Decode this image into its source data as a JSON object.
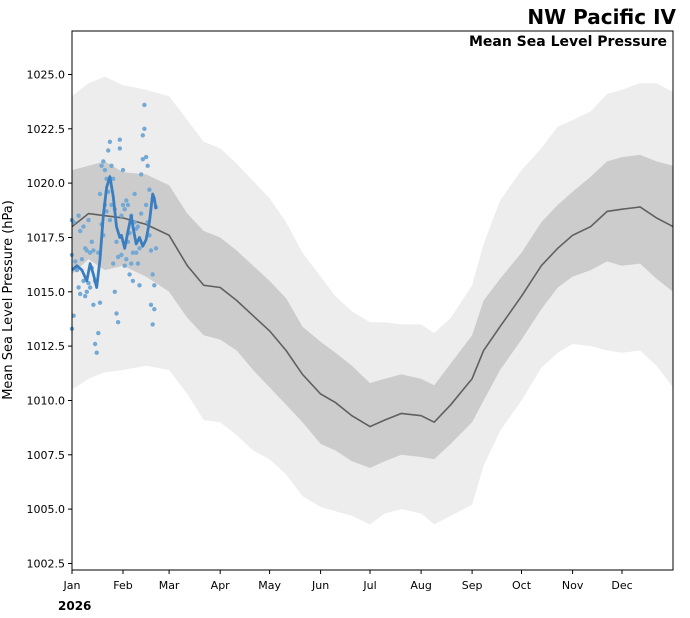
{
  "chart_data": {
    "type": "line",
    "title": "NW Pacific IV",
    "subtitle": "Mean Sea Level Pressure",
    "ylabel": "Mean Sea Level Pressure (hPa)",
    "year_label": "2026",
    "ylim": [
      1002.2,
      1027.0
    ],
    "xlim_day": [
      0,
      365
    ],
    "y_ticks": [
      1002.5,
      1005.0,
      1007.5,
      1010.0,
      1012.5,
      1015.0,
      1017.5,
      1020.0,
      1022.5,
      1025.0
    ],
    "y_tick_labels": [
      "1002.5",
      "1005.0",
      "1007.5",
      "1010.0",
      "1012.5",
      "1015.0",
      "1017.5",
      "1020.0",
      "1022.5",
      "1025.0"
    ],
    "months": [
      {
        "label": "Jan",
        "day": 0
      },
      {
        "label": "Feb",
        "day": 31
      },
      {
        "label": "Mar",
        "day": 59
      },
      {
        "label": "Apr",
        "day": 90
      },
      {
        "label": "May",
        "day": 120
      },
      {
        "label": "Jun",
        "day": 151
      },
      {
        "label": "Jul",
        "day": 181
      },
      {
        "label": "Aug",
        "day": 212
      },
      {
        "label": "Sep",
        "day": 243
      },
      {
        "label": "Oct",
        "day": 273
      },
      {
        "label": "Nov",
        "day": 304
      },
      {
        "label": "Dec",
        "day": 334
      }
    ],
    "climatology": {
      "day": [
        0,
        10,
        20,
        31,
        45,
        59,
        70,
        80,
        90,
        100,
        110,
        120,
        130,
        140,
        151,
        160,
        170,
        181,
        190,
        200,
        212,
        220,
        230,
        243,
        250,
        260,
        273,
        285,
        295,
        304,
        315,
        325,
        334,
        345,
        355,
        365
      ],
      "mean": [
        1018.0,
        1018.6,
        1018.5,
        1018.4,
        1018.1,
        1017.6,
        1016.2,
        1015.3,
        1015.2,
        1014.6,
        1013.9,
        1013.2,
        1012.3,
        1011.2,
        1010.3,
        1009.9,
        1009.3,
        1008.8,
        1009.1,
        1009.4,
        1009.3,
        1009.0,
        1009.8,
        1011.0,
        1012.3,
        1013.4,
        1014.8,
        1016.2,
        1017.0,
        1017.6,
        1018.0,
        1018.7,
        1018.8,
        1018.9,
        1018.4,
        1018.0
      ],
      "p25": [
        1015.8,
        1016.5,
        1016.0,
        1016.2,
        1015.7,
        1015.0,
        1013.8,
        1013.0,
        1012.8,
        1012.3,
        1011.4,
        1010.6,
        1009.8,
        1009.0,
        1008.0,
        1007.7,
        1007.2,
        1006.9,
        1007.2,
        1007.5,
        1007.4,
        1007.3,
        1008.0,
        1009.0,
        1010.0,
        1011.4,
        1012.8,
        1014.2,
        1015.2,
        1015.7,
        1016.0,
        1016.4,
        1016.2,
        1016.3,
        1015.6,
        1015.0
      ],
      "p75": [
        1020.6,
        1020.8,
        1021.0,
        1020.5,
        1020.4,
        1019.9,
        1018.6,
        1017.8,
        1017.5,
        1016.9,
        1016.2,
        1015.5,
        1014.7,
        1013.4,
        1012.7,
        1012.2,
        1011.6,
        1010.8,
        1011.0,
        1011.2,
        1011.0,
        1010.7,
        1011.7,
        1013.0,
        1014.6,
        1015.6,
        1016.8,
        1018.2,
        1019.0,
        1019.6,
        1020.3,
        1021.0,
        1021.2,
        1021.3,
        1021.0,
        1020.8
      ],
      "min": [
        1010.5,
        1011.0,
        1011.3,
        1011.4,
        1011.6,
        1011.4,
        1010.3,
        1009.1,
        1009.0,
        1008.4,
        1007.7,
        1007.3,
        1006.6,
        1005.6,
        1005.1,
        1004.9,
        1004.7,
        1004.3,
        1004.8,
        1005.0,
        1004.8,
        1004.3,
        1004.7,
        1005.2,
        1007.0,
        1008.6,
        1010.0,
        1011.5,
        1012.2,
        1012.6,
        1012.5,
        1012.3,
        1012.2,
        1012.3,
        1011.6,
        1010.6
      ],
      "max": [
        1024.0,
        1024.6,
        1024.9,
        1024.5,
        1024.3,
        1024.0,
        1022.9,
        1021.9,
        1021.6,
        1020.9,
        1020.1,
        1019.3,
        1018.2,
        1016.8,
        1015.7,
        1014.8,
        1014.1,
        1013.6,
        1013.6,
        1013.5,
        1013.5,
        1013.1,
        1013.8,
        1015.3,
        1017.2,
        1019.2,
        1020.6,
        1021.6,
        1022.6,
        1022.9,
        1023.3,
        1024.1,
        1024.3,
        1024.6,
        1024.6,
        1024.2
      ]
    },
    "observed_line": {
      "day": [
        0,
        3,
        6,
        9,
        11,
        13,
        15,
        17,
        19,
        21,
        23,
        25,
        27,
        29,
        30,
        32,
        34,
        36,
        37,
        39,
        41,
        43,
        45,
        47,
        49,
        50,
        51
      ],
      "value": [
        1016.0,
        1016.2,
        1016.0,
        1015.5,
        1016.3,
        1015.8,
        1015.2,
        1016.5,
        1018.5,
        1019.8,
        1020.3,
        1019.4,
        1018.0,
        1017.5,
        1017.6,
        1017.0,
        1017.8,
        1018.5,
        1018.0,
        1017.2,
        1017.5,
        1017.1,
        1017.4,
        1018.2,
        1019.5,
        1019.3,
        1018.8
      ]
    },
    "observed_points": {
      "day": [
        0,
        0,
        0,
        1,
        1,
        2,
        3,
        4,
        4,
        5,
        5,
        6,
        7,
        7,
        8,
        8,
        9,
        9,
        10,
        10,
        11,
        11,
        12,
        12,
        13,
        13,
        14,
        14,
        15,
        16,
        16,
        17,
        17,
        18,
        18,
        19,
        19,
        20,
        20,
        21,
        21,
        22,
        22,
        23,
        23,
        24,
        24,
        25,
        25,
        26,
        26,
        27,
        27,
        28,
        28,
        29,
        29,
        30,
        30,
        31,
        31,
        32,
        32,
        33,
        33,
        34,
        34,
        35,
        35,
        36,
        36,
        37,
        37,
        38,
        38,
        39,
        39,
        40,
        40,
        41,
        41,
        42,
        42,
        43,
        43,
        44,
        44,
        45,
        45,
        46,
        46,
        47,
        47,
        48,
        48,
        49,
        49,
        50,
        50,
        51,
        51
      ],
      "value": [
        1013.3,
        1018.3,
        1016.7,
        1013.9,
        1018.2,
        1016.4,
        1016.0,
        1018.5,
        1015.2,
        1017.8,
        1014.9,
        1016.5,
        1015.5,
        1018.0,
        1014.8,
        1017.0,
        1016.9,
        1015.0,
        1015.4,
        1018.3,
        1016.8,
        1015.2,
        1016.1,
        1017.3,
        1014.4,
        1016.9,
        1012.6,
        1015.5,
        1012.2,
        1013.1,
        1016.8,
        1014.5,
        1019.5,
        1018.1,
        1020.8,
        1017.6,
        1021.0,
        1019.0,
        1020.6,
        1018.7,
        1020.2,
        1019.6,
        1021.5,
        1018.3,
        1021.9,
        1020.8,
        1019.0,
        1016.3,
        1020.2,
        1015.0,
        1018.8,
        1014.0,
        1017.3,
        1013.6,
        1016.6,
        1021.6,
        1022.0,
        1016.7,
        1018.5,
        1019.0,
        1020.6,
        1016.2,
        1018.8,
        1019.2,
        1016.5,
        1017.3,
        1019.0,
        1015.8,
        1017.7,
        1016.3,
        1018.5,
        1015.5,
        1016.8,
        1018.2,
        1019.5,
        1016.8,
        1017.9,
        1016.3,
        1018.0,
        1017.0,
        1015.3,
        1020.4,
        1018.6,
        1022.2,
        1021.1,
        1023.6,
        1022.5,
        1021.2,
        1019.0,
        1020.8,
        1018.2,
        1017.6,
        1019.7,
        1014.4,
        1016.9,
        1013.5,
        1015.8,
        1014.2,
        1015.3,
        1017.0,
        1018.9
      ]
    },
    "colors": {
      "minmax_band": "#ededed",
      "iqr_band": "#cccccc",
      "mean_line": "#606060",
      "observed_line": "#3a7ebf",
      "observed_points": "#74a9d6"
    }
  }
}
